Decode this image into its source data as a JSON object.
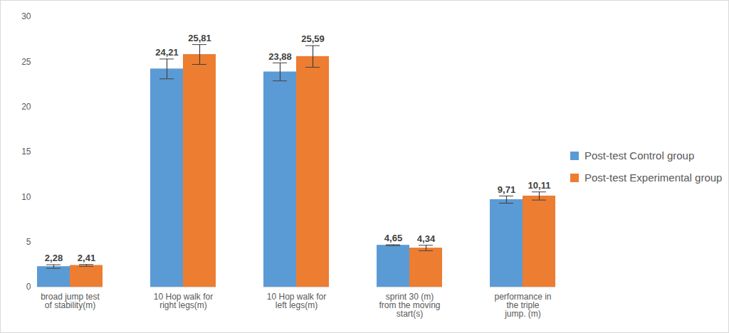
{
  "chart_data": {
    "type": "bar",
    "categories": [
      "broad jump test of stability(m)",
      "10 Hop walk for  right legs(m)",
      "10 Hop walk for  left legs(m)",
      "sprint 30 (m) from the moving start(s)",
      "performance in the triple jump. (m)"
    ],
    "series": [
      {
        "name": "Post-test Control group",
        "color": "#5b9bd5",
        "values": [
          2.28,
          24.21,
          23.88,
          4.65,
          9.71
        ],
        "value_labels": [
          "2,28",
          "24,21",
          "23,88",
          "4,65",
          "9,71"
        ],
        "errors": [
          0.2,
          1.1,
          1.0,
          0.05,
          0.4
        ]
      },
      {
        "name": "Post-test Experimental group",
        "color": "#ed7d31",
        "values": [
          2.41,
          25.81,
          25.59,
          4.34,
          10.11
        ],
        "value_labels": [
          "2,41",
          "25,81",
          "25,59",
          "4,34",
          "10,11"
        ],
        "errors": [
          0.1,
          1.1,
          1.2,
          0.3,
          0.45
        ]
      }
    ],
    "ylim": [
      0,
      30
    ],
    "yticks": [
      0,
      5,
      10,
      15,
      20,
      25,
      30
    ],
    "grid": false,
    "legend": "right",
    "data_labels": true
  }
}
